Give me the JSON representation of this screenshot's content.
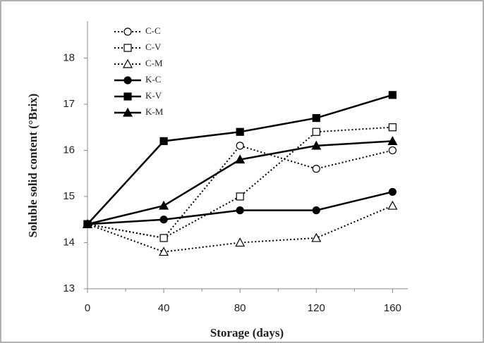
{
  "chart_data": {
    "type": "line",
    "x_label": "Storage (days)",
    "y_label": "Soluble solid content (°Brix)",
    "x": [
      0,
      40,
      80,
      120,
      160
    ],
    "xlim": [
      0,
      168
    ],
    "xticks": [
      0,
      40,
      80,
      120,
      160
    ],
    "xminorticks": [
      20,
      60,
      100,
      140
    ],
    "ylim": [
      13,
      18.8
    ],
    "yticks": [
      13,
      14,
      15,
      16,
      17,
      18
    ],
    "legend": "top-left",
    "series": [
      {
        "name": "C-C",
        "color": "#000000",
        "marker": "circle",
        "filled": false,
        "dashed": true,
        "values": [
          14.4,
          14.1,
          16.1,
          15.6,
          16.0
        ]
      },
      {
        "name": "C-V",
        "color": "#000000",
        "marker": "square",
        "filled": false,
        "dashed": true,
        "values": [
          14.4,
          14.1,
          15.0,
          16.4,
          16.5
        ]
      },
      {
        "name": "C-M",
        "color": "#000000",
        "marker": "triangle",
        "filled": false,
        "dashed": true,
        "values": [
          14.4,
          13.8,
          14.0,
          14.1,
          14.8
        ]
      },
      {
        "name": "K-C",
        "color": "#000000",
        "marker": "circle",
        "filled": true,
        "dashed": false,
        "values": [
          14.4,
          14.5,
          14.7,
          14.7,
          15.1
        ]
      },
      {
        "name": "K-V",
        "color": "#000000",
        "marker": "square",
        "filled": true,
        "dashed": false,
        "values": [
          14.4,
          16.2,
          16.4,
          16.7,
          17.2
        ]
      },
      {
        "name": "K-M",
        "color": "#000000",
        "marker": "triangle",
        "filled": true,
        "dashed": false,
        "values": [
          14.4,
          14.8,
          15.8,
          16.1,
          16.2
        ]
      }
    ]
  }
}
